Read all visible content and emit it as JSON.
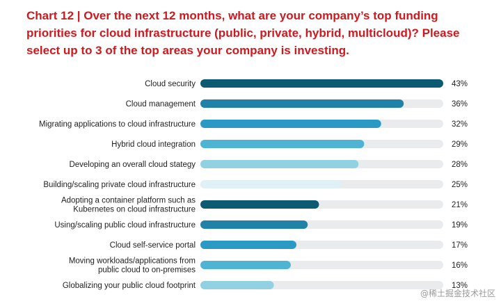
{
  "title": "Chart 12 | Over the next 12 months, what are your company’s top funding priorities for cloud infrastructure (public, private, hybrid, multicloud)? Please select up to 3 of the top areas your company is investing.",
  "watermark": "@稀土掘金技术社区",
  "colors": {
    "title": "#d0191f",
    "track": "#e9ebed",
    "bar_palette": [
      "#0d5a73",
      "#1f82a6",
      "#2a9ac4",
      "#4db4d3",
      "#92d1e2",
      "#dff0f6"
    ]
  },
  "chart_data": {
    "type": "bar",
    "orientation": "horizontal",
    "categories": [
      "Cloud security",
      "Cloud management",
      "Migrating applications to cloud infrastructure",
      "Hybrid cloud integration",
      "Developing an overall cloud stategy",
      "Building/scaling private cloud infrastructure",
      "Adopting a container platform such as Kubernetes on cloud infrastructure",
      "Using/scaling public cloud infrastructure",
      "Cloud self-service portal",
      "Moving workloads/applications from public cloud  to on-premises",
      "Globalizing your public cloud footprint"
    ],
    "category_lines": [
      [
        "Cloud security"
      ],
      [
        "Cloud management"
      ],
      [
        "Migrating applications to cloud infrastructure"
      ],
      [
        "Hybrid cloud integration"
      ],
      [
        "Developing an overall cloud stategy"
      ],
      [
        "Building/scaling private cloud infrastructure"
      ],
      [
        "Adopting a container platform such as",
        "Kubernetes on cloud infrastructure"
      ],
      [
        "Using/scaling public cloud infrastructure"
      ],
      [
        "Cloud self-service portal"
      ],
      [
        "Moving workloads/applications from",
        "public cloud  to on-premises"
      ],
      [
        "Globalizing your public cloud footprint"
      ]
    ],
    "values": [
      43,
      36,
      32,
      29,
      28,
      25,
      21,
      19,
      17,
      16,
      13
    ],
    "value_labels": [
      "43%",
      "36%",
      "32%",
      "29%",
      "28%",
      "25%",
      "21%",
      "19%",
      "17%",
      "16%",
      "13%"
    ],
    "xlim": [
      0,
      43
    ],
    "grid": false,
    "legend": "none"
  }
}
